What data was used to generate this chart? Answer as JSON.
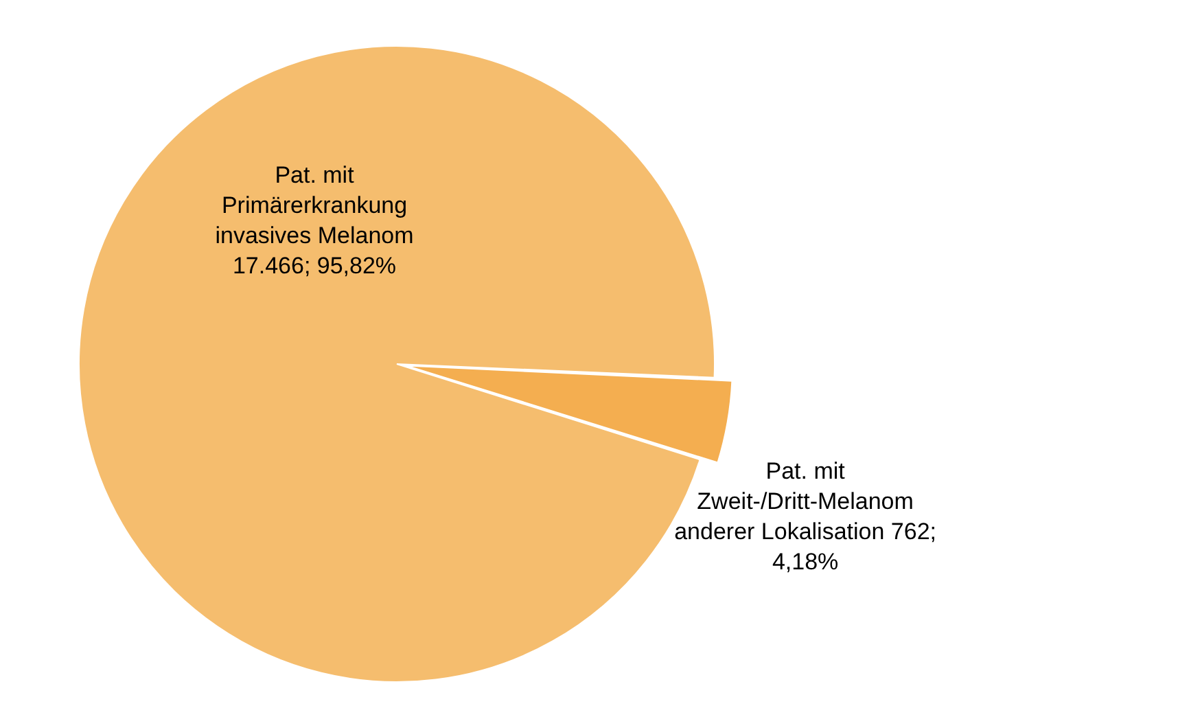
{
  "chart_data": {
    "type": "pie",
    "categories": [
      "Pat. mit Primärerkrankung invasives Melanom",
      "Pat. mit Zweit-/Dritt-Melanom anderer Lokalisation"
    ],
    "values": [
      17466,
      762
    ],
    "value_labels": [
      "17.466; 95,82%",
      "762; 4,18%"
    ],
    "colors": [
      "#f5bd6e",
      "#f4ae50"
    ],
    "legend": false
  }
}
